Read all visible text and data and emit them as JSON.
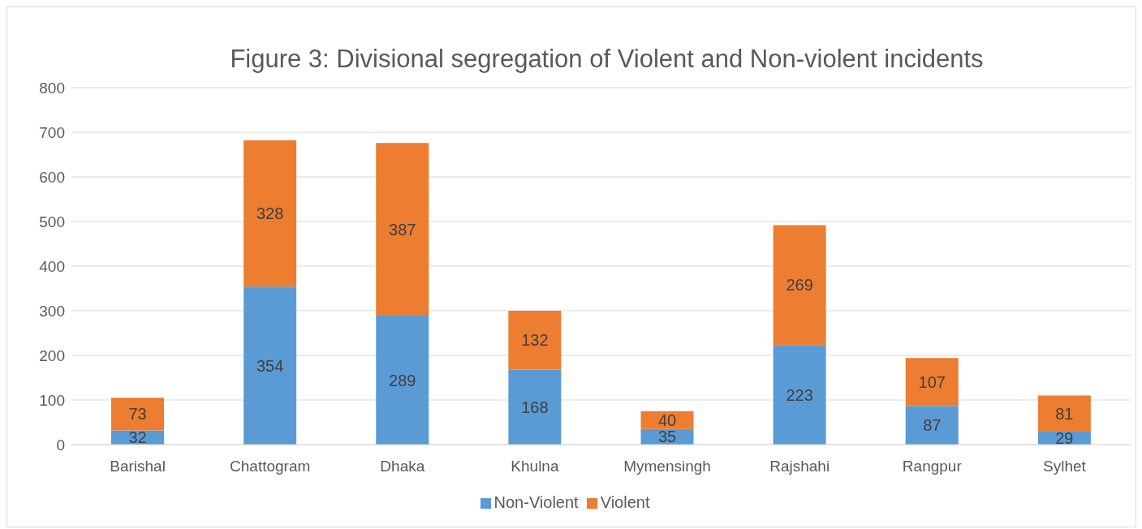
{
  "chart_data": {
    "type": "bar",
    "title": "Figure 3: Divisional segregation of Violent and Non-violent incidents",
    "categories": [
      "Barishal",
      "Chattogram",
      "Dhaka",
      "Khulna",
      "Mymensingh",
      "Rajshahi",
      "Rangpur",
      "Sylhet"
    ],
    "series": [
      {
        "name": "Non-Violent",
        "color": "#5b9bd5",
        "values": [
          32,
          354,
          289,
          168,
          35,
          223,
          87,
          29
        ]
      },
      {
        "name": "Violent",
        "color": "#ed7d31",
        "values": [
          73,
          328,
          387,
          132,
          40,
          269,
          107,
          81
        ]
      }
    ],
    "stacked": true,
    "ylim": [
      0,
      800
    ],
    "yticks": [
      0,
      100,
      200,
      300,
      400,
      500,
      600,
      700,
      800
    ],
    "grid": "y",
    "legend": "bottom",
    "data_labels": true
  }
}
